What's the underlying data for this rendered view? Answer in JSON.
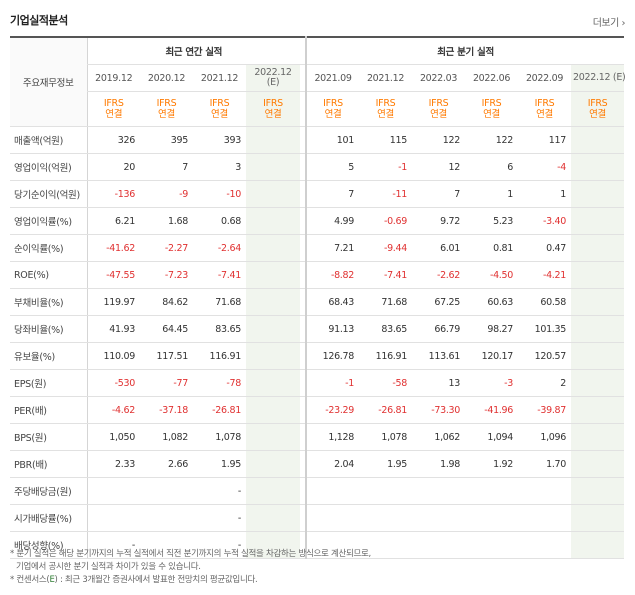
{
  "header": {
    "title": "기업실적분석",
    "more_label": "더보기 ›"
  },
  "table": {
    "corner_label": "주요재무정보",
    "annual_group": "최근 연간 실적",
    "quarter_group": "최근 분기 실적",
    "annual_periods": [
      "2019.12",
      "2020.12",
      "2021.12",
      "2022.12",
      "(E)"
    ],
    "quarter_periods": [
      "2021.09",
      "2021.12",
      "2022.03",
      "2022.06",
      "2022.09",
      "2022.12 (E)"
    ],
    "ifrs_top": "IFRS",
    "ifrs_bottom": "연결",
    "rows": [
      {
        "label": "매출액(억원)",
        "annual": [
          "326",
          "395",
          "393",
          ""
        ],
        "quarter": [
          "101",
          "115",
          "122",
          "122",
          "117",
          ""
        ]
      },
      {
        "label": "영업이익(억원)",
        "annual": [
          "20",
          "7",
          "3",
          ""
        ],
        "quarter": [
          "5",
          "-1",
          "12",
          "6",
          "-4",
          ""
        ]
      },
      {
        "label": "당기순이익(억원)",
        "annual": [
          "-136",
          "-9",
          "-10",
          ""
        ],
        "quarter": [
          "7",
          "-11",
          "7",
          "1",
          "1",
          ""
        ]
      },
      {
        "label": "영업이익률(%)",
        "annual": [
          "6.21",
          "1.68",
          "0.68",
          ""
        ],
        "quarter": [
          "4.99",
          "-0.69",
          "9.72",
          "5.23",
          "-3.40",
          ""
        ]
      },
      {
        "label": "순이익률(%)",
        "annual": [
          "-41.62",
          "-2.27",
          "-2.64",
          ""
        ],
        "quarter": [
          "7.21",
          "-9.44",
          "6.01",
          "0.81",
          "0.47",
          ""
        ]
      },
      {
        "label": "ROE(%)",
        "annual": [
          "-47.55",
          "-7.23",
          "-7.41",
          ""
        ],
        "quarter": [
          "-8.82",
          "-7.41",
          "-2.62",
          "-4.50",
          "-4.21",
          ""
        ]
      },
      {
        "label": "부채비율(%)",
        "annual": [
          "119.97",
          "84.62",
          "71.68",
          ""
        ],
        "quarter": [
          "68.43",
          "71.68",
          "67.25",
          "60.63",
          "60.58",
          ""
        ]
      },
      {
        "label": "당좌비율(%)",
        "annual": [
          "41.93",
          "64.45",
          "83.65",
          ""
        ],
        "quarter": [
          "91.13",
          "83.65",
          "66.79",
          "98.27",
          "101.35",
          ""
        ]
      },
      {
        "label": "유보율(%)",
        "annual": [
          "110.09",
          "117.51",
          "116.91",
          ""
        ],
        "quarter": [
          "126.78",
          "116.91",
          "113.61",
          "120.17",
          "120.57",
          ""
        ]
      },
      {
        "label": "EPS(원)",
        "annual": [
          "-530",
          "-77",
          "-78",
          ""
        ],
        "quarter": [
          "-1",
          "-58",
          "13",
          "-3",
          "2",
          ""
        ]
      },
      {
        "label": "PER(배)",
        "annual": [
          "-4.62",
          "-37.18",
          "-26.81",
          ""
        ],
        "quarter": [
          "-23.29",
          "-26.81",
          "-73.30",
          "-41.96",
          "-39.87",
          ""
        ]
      },
      {
        "label": "BPS(원)",
        "annual": [
          "1,050",
          "1,082",
          "1,078",
          ""
        ],
        "quarter": [
          "1,128",
          "1,078",
          "1,062",
          "1,094",
          "1,096",
          ""
        ]
      },
      {
        "label": "PBR(배)",
        "annual": [
          "2.33",
          "2.66",
          "1.95",
          ""
        ],
        "quarter": [
          "2.04",
          "1.95",
          "1.98",
          "1.92",
          "1.70",
          ""
        ]
      },
      {
        "label": "주당배당금(원)",
        "annual": [
          "",
          "",
          "-",
          ""
        ],
        "quarter": [
          "",
          "",
          "",
          "",
          "",
          ""
        ]
      },
      {
        "label": "시가배당률(%)",
        "annual": [
          "",
          "",
          "-",
          ""
        ],
        "quarter": [
          "",
          "",
          "",
          "",
          "",
          ""
        ]
      },
      {
        "label": "배당성향(%)",
        "annual": [
          "-",
          "",
          "-",
          ""
        ],
        "quarter": [
          "",
          "",
          "",
          "",
          "",
          ""
        ]
      }
    ]
  },
  "notes": {
    "line1": "* 분기 실적은 해당 분기까지의 누적 실적에서 직전 분기까지의 누적 실적을 차감하는 방식으로 계산되므로,",
    "line2": "기업에서 공시한 분기 실적과 차이가 있을 수 있습니다.",
    "line3_prefix": "* 컨센서스(",
    "line3_e": "E",
    "line3_suffix": ") : 최근 3개월간 증권사에서 발표한 전망치의 평균값입니다."
  },
  "colors": {
    "negative": "#e03131",
    "ifrs": "#ff7a00",
    "estimate_bg": "#f1f5ee"
  }
}
